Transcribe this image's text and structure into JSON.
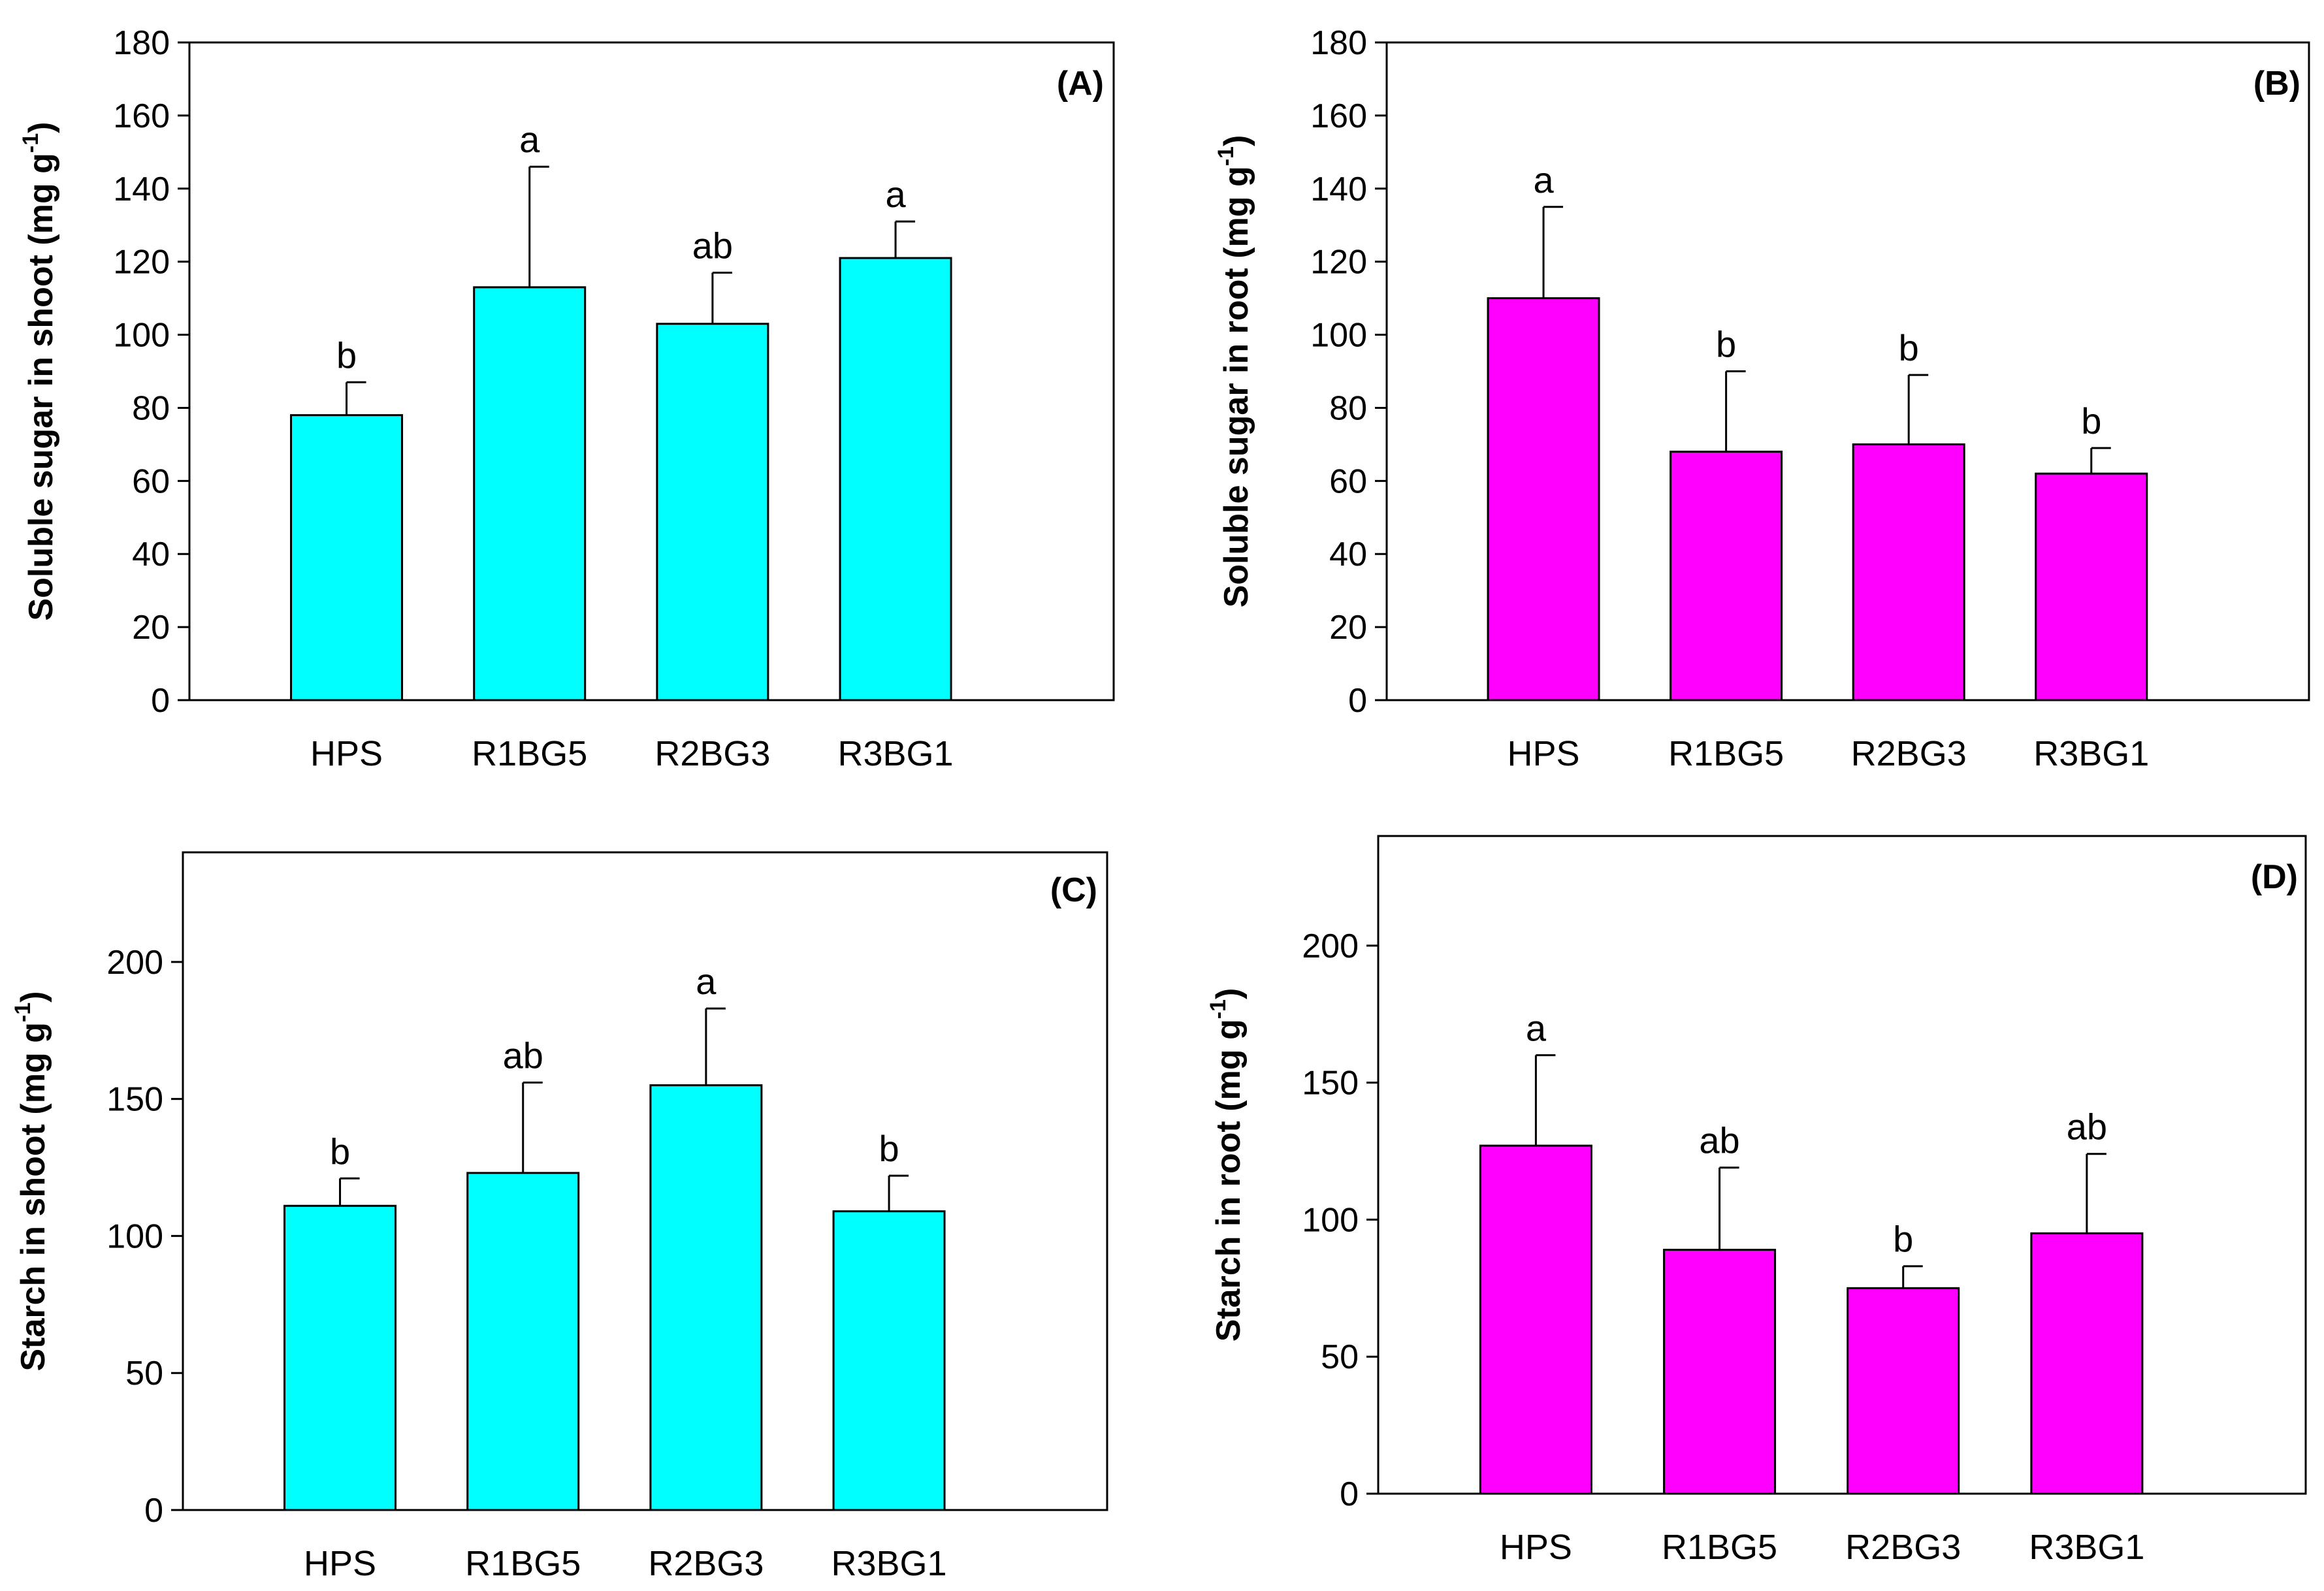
{
  "chart_data": [
    {
      "type": "bar",
      "panel": "(A)",
      "categories": [
        "HPS",
        "R1BG5",
        "R2BG3",
        "R3BG1"
      ],
      "values": [
        78,
        113,
        103,
        121
      ],
      "errors": [
        9,
        33,
        14,
        10
      ],
      "significance": [
        "b",
        "a",
        "ab",
        "a"
      ],
      "ylabel": "Soluble sugar in shoot (mg g",
      "ylabel_sup": "-1",
      "ylabel_end": ")",
      "ylim": [
        0,
        180
      ],
      "yticks": [
        0,
        20,
        40,
        60,
        80,
        100,
        120,
        140,
        160,
        180
      ],
      "bar_color": "#00FFFF"
    },
    {
      "type": "bar",
      "panel": "(B)",
      "categories": [
        "HPS",
        "R1BG5",
        "R2BG3",
        "R3BG1"
      ],
      "values": [
        110,
        68,
        70,
        62
      ],
      "errors": [
        25,
        22,
        19,
        7
      ],
      "significance": [
        "a",
        "b",
        "b",
        "b"
      ],
      "ylabel": "Soluble sugar in root (mg g",
      "ylabel_sup": "-1",
      "ylabel_end": ")",
      "ylim": [
        0,
        180
      ],
      "yticks": [
        0,
        20,
        40,
        60,
        80,
        100,
        120,
        140,
        160,
        180
      ],
      "bar_color": "#FF00FF"
    },
    {
      "type": "bar",
      "panel": "(C)",
      "categories": [
        "HPS",
        "R1BG5",
        "R2BG3",
        "R3BG1"
      ],
      "values": [
        111,
        123,
        155,
        109
      ],
      "errors": [
        10,
        33,
        28,
        13
      ],
      "significance": [
        "b",
        "ab",
        "a",
        "b"
      ],
      "ylabel": "Starch in shoot (mg g",
      "ylabel_sup": "-1",
      "ylabel_end": ")",
      "ylim": [
        0,
        240
      ],
      "yticks": [
        0,
        50,
        100,
        150,
        200
      ],
      "bar_color": "#00FFFF"
    },
    {
      "type": "bar",
      "panel": "(D)",
      "categories": [
        "HPS",
        "R1BG5",
        "R2BG3",
        "R3BG1"
      ],
      "values": [
        127,
        89,
        75,
        95
      ],
      "errors": [
        33,
        30,
        8,
        29
      ],
      "significance": [
        "a",
        "ab",
        "b",
        "ab"
      ],
      "ylabel": "Starch in root (mg g",
      "ylabel_sup": "-1",
      "ylabel_end": ")",
      "ylim": [
        0,
        240
      ],
      "yticks": [
        0,
        50,
        100,
        150,
        200
      ],
      "bar_color": "#FF00FF"
    }
  ]
}
